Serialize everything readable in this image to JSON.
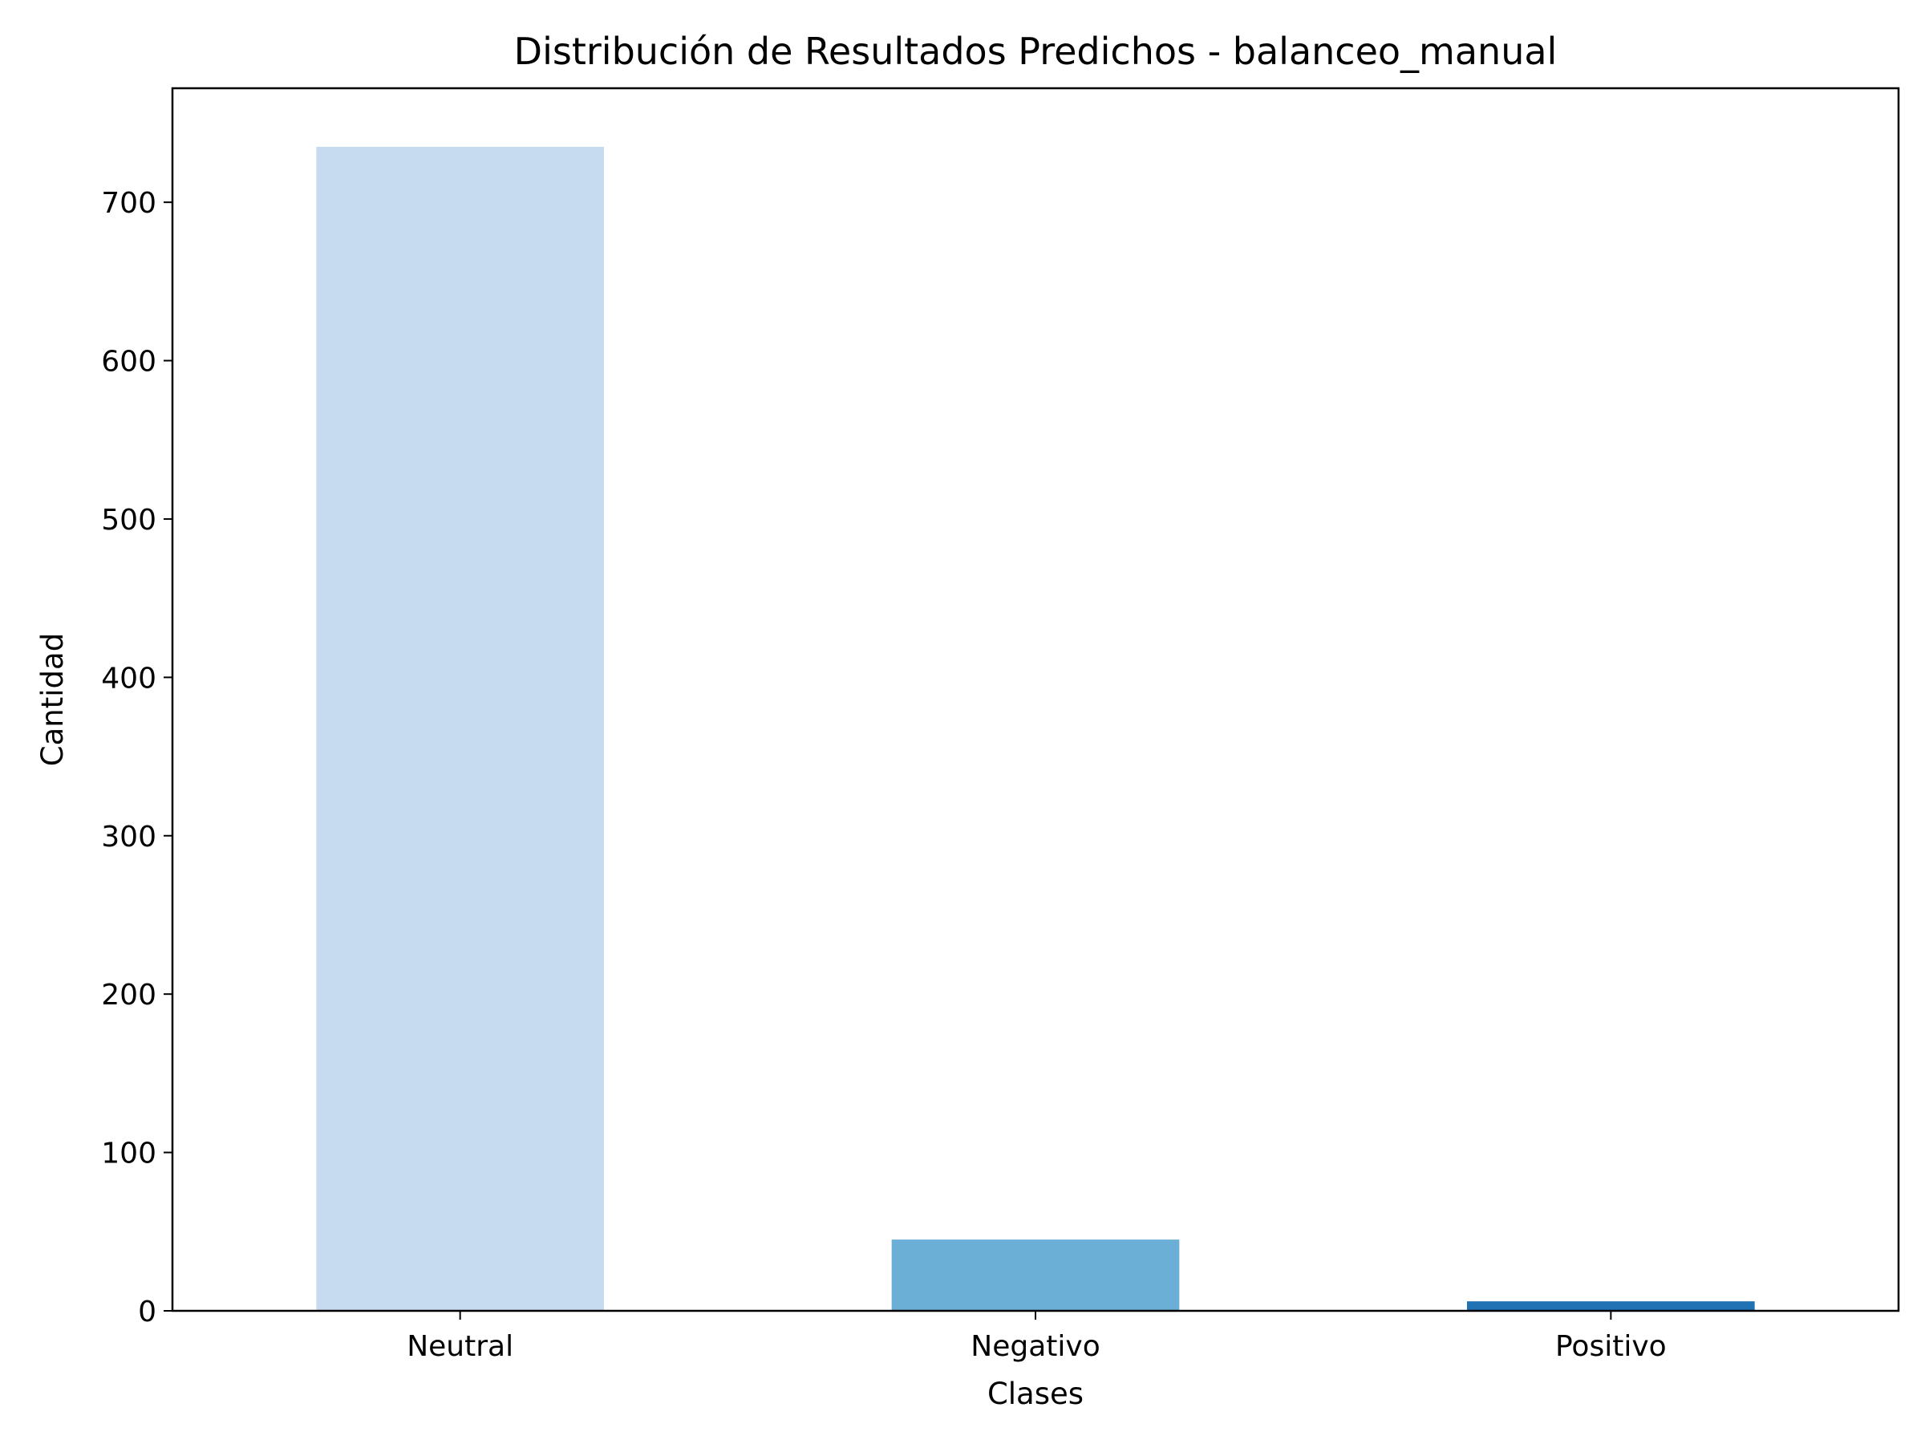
{
  "chart_data": {
    "type": "bar",
    "title": "Distribución de Resultados Predichos - balanceo_manual",
    "xlabel": "Clases",
    "ylabel": "Cantidad",
    "categories": [
      "Neutral",
      "Negativo",
      "Positivo"
    ],
    "values": [
      735,
      45,
      6
    ],
    "bar_colors": [
      "#c6dbef",
      "#6baed6",
      "#2171b5"
    ],
    "ylim": [
      0,
      772
    ],
    "yticks": [
      0,
      100,
      200,
      300,
      400,
      500,
      600,
      700
    ],
    "grid": false,
    "legend": false
  }
}
